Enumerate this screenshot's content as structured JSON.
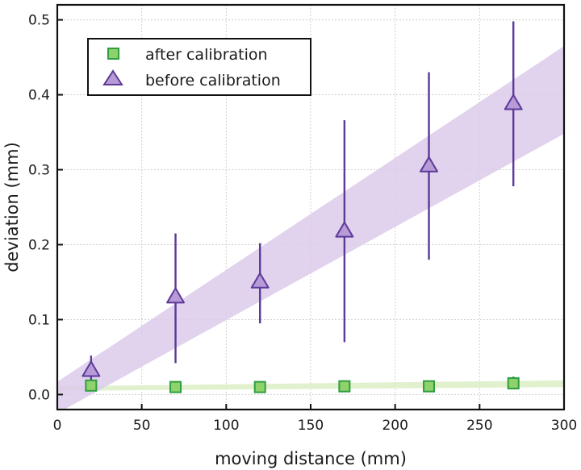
{
  "chart_data": {
    "type": "scatter",
    "xlabel": "moving distance (mm)",
    "ylabel": "deviation (mm)",
    "xlim": [
      0,
      300
    ],
    "ylim": [
      -0.02,
      0.52
    ],
    "xticks": [
      0,
      50,
      100,
      150,
      200,
      250,
      300
    ],
    "yticks": [
      0.0,
      0.1,
      0.2,
      0.3,
      0.4,
      0.5
    ],
    "xtick_labels": [
      "0",
      "50",
      "100",
      "150",
      "200",
      "250",
      "300"
    ],
    "ytick_labels": [
      "0.0",
      "0.1",
      "0.2",
      "0.3",
      "0.4",
      "0.5"
    ],
    "grid": true,
    "legend_position": "top-left",
    "series": [
      {
        "name": "after calibration",
        "marker": "square",
        "color": "#2e9e3e",
        "fill": "#8fd16a",
        "x": [
          20,
          70,
          120,
          170,
          220,
          270
        ],
        "y": [
          0.012,
          0.01,
          0.01,
          0.011,
          0.011,
          0.015
        ],
        "err_low": [
          0.005,
          0.006,
          0.004,
          0.005,
          0.005,
          0.007
        ],
        "err_high": [
          0.005,
          0.006,
          0.004,
          0.005,
          0.005,
          0.009
        ],
        "band": {
          "x": [
            0,
            300
          ],
          "lower": [
            0.005,
            0.01
          ],
          "upper": [
            0.011,
            0.019
          ],
          "color": "#dcefc4"
        }
      },
      {
        "name": "before calibration",
        "marker": "triangle",
        "color": "#5b3a99",
        "fill": "#b89ad6",
        "x": [
          20,
          70,
          120,
          170,
          220,
          270
        ],
        "y": [
          0.032,
          0.13,
          0.15,
          0.218,
          0.305,
          0.388
        ],
        "err_low": [
          0.02,
          0.088,
          0.055,
          0.148,
          0.125,
          0.11
        ],
        "err_high": [
          0.02,
          0.085,
          0.052,
          0.148,
          0.125,
          0.11
        ],
        "band": {
          "x": [
            0,
            300
          ],
          "lower": [
            -0.025,
            0.348
          ],
          "upper": [
            0.017,
            0.465
          ],
          "color": "#dccaea"
        }
      }
    ]
  }
}
